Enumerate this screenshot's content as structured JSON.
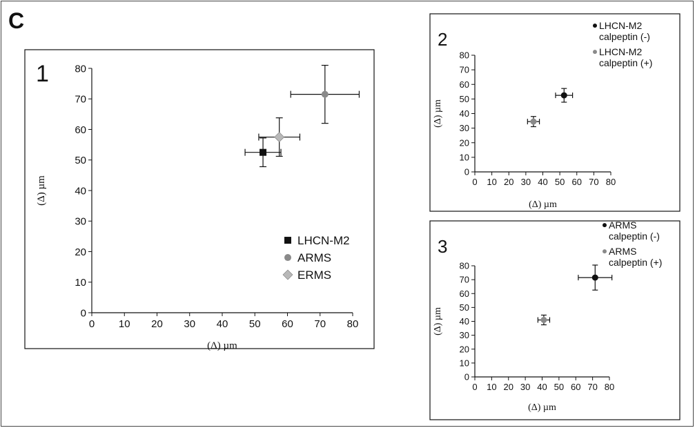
{
  "figure": {
    "panel_letter": "C"
  },
  "chart_data": [
    {
      "panel_number": "1",
      "type": "scatter",
      "xlabel": "(Δ) µm",
      "ylabel": "(Δ) µm",
      "xlim": [
        0,
        80
      ],
      "ylim": [
        0,
        80
      ],
      "xticks": [
        0,
        10,
        20,
        30,
        40,
        50,
        60,
        70,
        80
      ],
      "yticks": [
        0,
        10,
        20,
        30,
        40,
        50,
        60,
        70,
        80
      ],
      "legend_position": "lower-right",
      "series": [
        {
          "name": "LHCN-M2",
          "marker": "square",
          "color": "#111111",
          "points": [
            {
              "x": 52.5,
              "y": 52.5,
              "xerr": 5.5,
              "yerr": 4.7
            }
          ]
        },
        {
          "name": "ARMS",
          "marker": "circle",
          "color": "#8a8a8a",
          "points": [
            {
              "x": 71.5,
              "y": 71.5,
              "xerr": 10.5,
              "yerr": 9.5
            }
          ]
        },
        {
          "name": "ERMS",
          "marker": "diamond",
          "color": "#b8b8b8",
          "points": [
            {
              "x": 57.5,
              "y": 57.5,
              "xerr": 6.3,
              "yerr": 6.3
            }
          ]
        }
      ]
    },
    {
      "panel_number": "2",
      "type": "scatter",
      "xlabel": "(Δ) µm",
      "ylabel": "(Δ) µm",
      "xlim": [
        0,
        80
      ],
      "ylim": [
        0,
        80
      ],
      "xticks": [
        0,
        10,
        20,
        30,
        40,
        50,
        60,
        70,
        80
      ],
      "yticks": [
        0,
        10,
        20,
        30,
        40,
        50,
        60,
        70,
        80
      ],
      "legend_position": "top-right",
      "series": [
        {
          "name": "LHCN-M2\ncalpeptin (-)",
          "marker": "circle",
          "color": "#111111",
          "points": [
            {
              "x": 52.5,
              "y": 52.5,
              "xerr": 5,
              "yerr": 4.7
            }
          ]
        },
        {
          "name": "LHCN-M2\ncalpeptin (+)",
          "marker": "circle",
          "color": "#8a8a8a",
          "points": [
            {
              "x": 34.5,
              "y": 34.5,
              "xerr": 3.5,
              "yerr": 3.5
            }
          ]
        }
      ]
    },
    {
      "panel_number": "3",
      "type": "scatter",
      "xlabel": "(Δ) µm",
      "ylabel": "(Δ) µm",
      "xlim": [
        0,
        80
      ],
      "ylim": [
        0,
        80
      ],
      "xticks": [
        0,
        10,
        20,
        30,
        40,
        50,
        60,
        70,
        80
      ],
      "yticks": [
        0,
        10,
        20,
        30,
        40,
        50,
        60,
        70,
        80
      ],
      "legend_position": "top-right",
      "series": [
        {
          "name": "ARMS\ncalpeptin (-)",
          "marker": "circle",
          "color": "#111111",
          "points": [
            {
              "x": 71.5,
              "y": 71.5,
              "xerr": 10,
              "yerr": 9
            }
          ]
        },
        {
          "name": "ARMS\ncalpeptin (+)",
          "marker": "circle",
          "color": "#8a8a8a",
          "points": [
            {
              "x": 41,
              "y": 41,
              "xerr": 3.5,
              "yerr": 3.5
            }
          ]
        }
      ]
    }
  ]
}
